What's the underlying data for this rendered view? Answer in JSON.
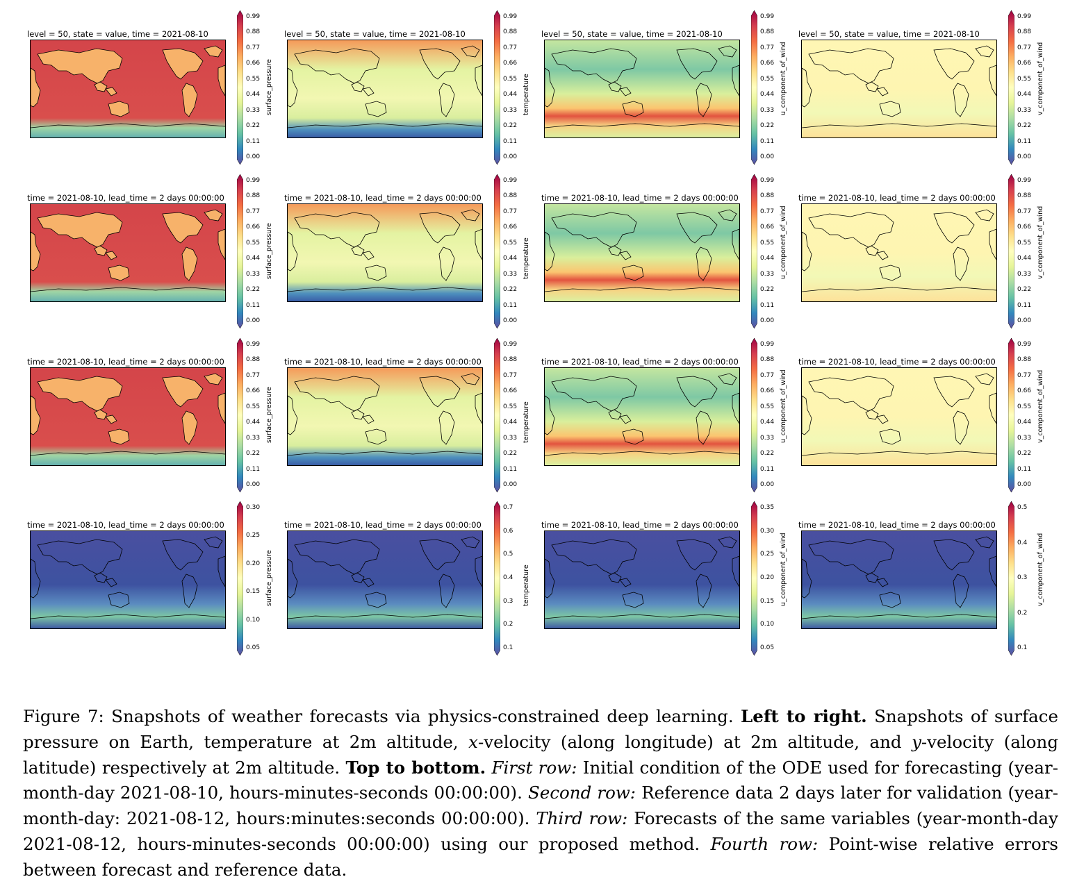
{
  "figure": {
    "rows": [
      {
        "panels": [
          {
            "title": "level = 50, state = value, time = 2021-08-10",
            "variable": "surface_pressure",
            "ticks": [
              "0.99",
              "0.88",
              "0.77",
              "0.66",
              "0.55",
              "0.44",
              "0.33",
              "0.22",
              "0.11",
              "0.00"
            ]
          },
          {
            "title": "level = 50, state = value, time = 2021-08-10",
            "variable": "temperature",
            "ticks": [
              "0.99",
              "0.88",
              "0.77",
              "0.66",
              "0.55",
              "0.44",
              "0.33",
              "0.22",
              "0.11",
              "0.00"
            ]
          },
          {
            "title": "level = 50, state = value, time = 2021-08-10",
            "variable": "u_component_of_wind",
            "ticks": [
              "0.99",
              "0.88",
              "0.77",
              "0.66",
              "0.55",
              "0.44",
              "0.33",
              "0.22",
              "0.11",
              "0.00"
            ]
          },
          {
            "title": "level = 50, state = value, time = 2021-08-10",
            "variable": "v_component_of_wind",
            "ticks": [
              "0.99",
              "0.88",
              "0.77",
              "0.66",
              "0.55",
              "0.44",
              "0.33",
              "0.22",
              "0.11",
              "0.00"
            ]
          }
        ]
      },
      {
        "panels": [
          {
            "title": "time = 2021-08-10, lead_time = 2 days 00:00:00",
            "variable": "surface_pressure",
            "ticks": [
              "0.99",
              "0.88",
              "0.77",
              "0.66",
              "0.55",
              "0.44",
              "0.33",
              "0.22",
              "0.11",
              "0.00"
            ]
          },
          {
            "title": "time = 2021-08-10, lead_time = 2 days 00:00:00",
            "variable": "temperature",
            "ticks": [
              "0.99",
              "0.88",
              "0.77",
              "0.66",
              "0.55",
              "0.44",
              "0.33",
              "0.22",
              "0.11",
              "0.00"
            ]
          },
          {
            "title": "time = 2021-08-10, lead_time = 2 days 00:00:00",
            "variable": "u_component_of_wind",
            "ticks": [
              "0.99",
              "0.88",
              "0.77",
              "0.66",
              "0.55",
              "0.44",
              "0.33",
              "0.22",
              "0.11",
              "0.00"
            ]
          },
          {
            "title": "time = 2021-08-10, lead_time = 2 days 00:00:00",
            "variable": "v_component_of_wind",
            "ticks": [
              "0.99",
              "0.88",
              "0.77",
              "0.66",
              "0.55",
              "0.44",
              "0.33",
              "0.22",
              "0.11",
              "0.00"
            ]
          }
        ]
      },
      {
        "panels": [
          {
            "title": "time = 2021-08-10, lead_time = 2 days 00:00:00",
            "variable": "surface_pressure",
            "ticks": [
              "0.99",
              "0.88",
              "0.77",
              "0.66",
              "0.55",
              "0.44",
              "0.33",
              "0.22",
              "0.11",
              "0.00"
            ]
          },
          {
            "title": "time = 2021-08-10, lead_time = 2 days 00:00:00",
            "variable": "temperature",
            "ticks": [
              "0.99",
              "0.88",
              "0.77",
              "0.66",
              "0.55",
              "0.44",
              "0.33",
              "0.22",
              "0.11",
              "0.00"
            ]
          },
          {
            "title": "time = 2021-08-10, lead_time = 2 days 00:00:00",
            "variable": "u_component_of_wind",
            "ticks": [
              "0.99",
              "0.88",
              "0.77",
              "0.66",
              "0.55",
              "0.44",
              "0.33",
              "0.22",
              "0.11",
              "0.00"
            ]
          },
          {
            "title": "time = 2021-08-10, lead_time = 2 days 00:00:00",
            "variable": "v_component_of_wind",
            "ticks": [
              "0.99",
              "0.88",
              "0.77",
              "0.66",
              "0.55",
              "0.44",
              "0.33",
              "0.22",
              "0.11",
              "0.00"
            ]
          }
        ]
      },
      {
        "panels": [
          {
            "title": "time = 2021-08-10, lead_time = 2 days 00:00:00",
            "variable": "surface_pressure",
            "ticks": [
              "0.30",
              "0.25",
              "0.20",
              "0.15",
              "0.10",
              "0.05"
            ]
          },
          {
            "title": "time = 2021-08-10, lead_time = 2 days 00:00:00",
            "variable": "temperature",
            "ticks": [
              "0.7",
              "0.6",
              "0.5",
              "0.4",
              "0.3",
              "0.2",
              "0.1"
            ]
          },
          {
            "title": "time = 2021-08-10, lead_time = 2 days 00:00:00",
            "variable": "u_component_of_wind",
            "ticks": [
              "0.35",
              "0.30",
              "0.25",
              "0.20",
              "0.15",
              "0.10",
              "0.05"
            ]
          },
          {
            "title": "time = 2021-08-10, lead_time = 2 days 00:00:00",
            "variable": "v_component_of_wind",
            "ticks": [
              "0.5",
              "0.4",
              "0.3",
              "0.2",
              "0.1"
            ]
          }
        ]
      }
    ]
  },
  "caption": {
    "label": "Figure 7:",
    "intro": "Snapshots of weather forecasts via physics-constrained deep learning.",
    "lr_heading": "Left to right.",
    "lr_text_1": "Snapshots of surface pressure on Earth, temperature at 2m altitude,",
    "x_var": "x",
    "lr_text_2": "-velocity (along longitude) at 2m altitude, and",
    "y_var": "y",
    "lr_text_3": "-velocity (along latitude) respectively at 2m altitude.",
    "tb_heading": "Top to bottom.",
    "r1_label": "First row:",
    "r1_text": "Initial condition of the ODE used for forecasting (year-month-day 2021-08-10, hours-minutes-seconds 00:00:00).",
    "r2_label": "Second row:",
    "r2_text": "Reference data 2 days later for validation (year-month-day: 2021-08-12, hours:minutes:seconds 00:00:00).",
    "r3_label": "Third row:",
    "r3_text": "Forecasts of the same variables (year-month-day 2021-08-12, hours-minutes-seconds 00:00:00) using our proposed method.",
    "r4_label": "Fourth row:",
    "r4_text": "Point-wise relative errors between forecast and reference data."
  }
}
